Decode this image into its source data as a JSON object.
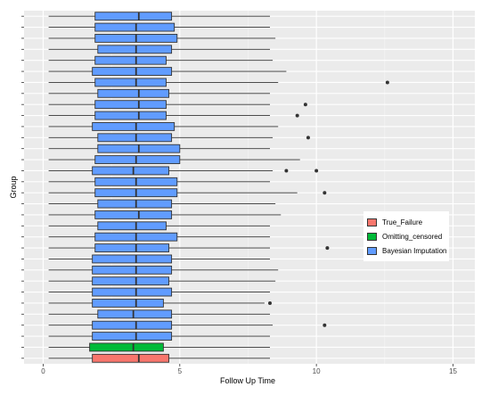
{
  "chart_data": {
    "type": "boxplot",
    "orientation": "horizontal",
    "xlabel": "Follow Up Time",
    "ylabel": "Group",
    "xlim": [
      -0.7,
      15.8
    ],
    "x_ticks": [
      0,
      5,
      10,
      15
    ],
    "grid": true,
    "legend_position": "right",
    "series": [
      {
        "name": "True_Failure",
        "color": "#F8766D"
      },
      {
        "name": "Omitting_censored",
        "color": "#00BA38"
      },
      {
        "name": "Bayesian Imputation",
        "color": "#619CFF"
      }
    ],
    "boxes": [
      {
        "group": "True_Failure",
        "min": 0.2,
        "q1": 1.8,
        "median": 3.5,
        "q3": 4.6,
        "max": 8.3,
        "outliers": []
      },
      {
        "group": "Omitting_censored",
        "min": 0.2,
        "q1": 1.7,
        "median": 3.3,
        "q3": 4.4,
        "max": 8.3,
        "outliers": []
      },
      {
        "group": "Bayesian Imputation",
        "min": 0.2,
        "q1": 1.8,
        "median": 3.4,
        "q3": 4.7,
        "max": 8.3,
        "outliers": []
      },
      {
        "group": "Bayesian Imputation",
        "min": 0.2,
        "q1": 1.8,
        "median": 3.4,
        "q3": 4.7,
        "max": 8.4,
        "outliers": [
          10.3
        ]
      },
      {
        "group": "Bayesian Imputation",
        "min": 0.2,
        "q1": 2.0,
        "median": 3.3,
        "q3": 4.7,
        "max": 8.3,
        "outliers": []
      },
      {
        "group": "Bayesian Imputation",
        "min": 0.2,
        "q1": 1.8,
        "median": 3.4,
        "q3": 4.4,
        "max": 8.1,
        "outliers": [
          8.3
        ]
      },
      {
        "group": "Bayesian Imputation",
        "min": 0.2,
        "q1": 1.8,
        "median": 3.4,
        "q3": 4.7,
        "max": 8.3,
        "outliers": []
      },
      {
        "group": "Bayesian Imputation",
        "min": 0.2,
        "q1": 1.8,
        "median": 3.4,
        "q3": 4.6,
        "max": 8.5,
        "outliers": []
      },
      {
        "group": "Bayesian Imputation",
        "min": 0.2,
        "q1": 1.8,
        "median": 3.4,
        "q3": 4.7,
        "max": 8.6,
        "outliers": []
      },
      {
        "group": "Bayesian Imputation",
        "min": 0.2,
        "q1": 1.8,
        "median": 3.4,
        "q3": 4.7,
        "max": 8.3,
        "outliers": []
      },
      {
        "group": "Bayesian Imputation",
        "min": 0.2,
        "q1": 1.9,
        "median": 3.4,
        "q3": 4.6,
        "max": 8.3,
        "outliers": [
          10.4
        ]
      },
      {
        "group": "Bayesian Imputation",
        "min": 0.2,
        "q1": 1.9,
        "median": 3.4,
        "q3": 4.9,
        "max": 8.3,
        "outliers": []
      },
      {
        "group": "Bayesian Imputation",
        "min": 0.2,
        "q1": 2.0,
        "median": 3.4,
        "q3": 4.5,
        "max": 8.3,
        "outliers": []
      },
      {
        "group": "Bayesian Imputation",
        "min": 0.2,
        "q1": 1.9,
        "median": 3.5,
        "q3": 4.7,
        "max": 8.7,
        "outliers": []
      },
      {
        "group": "Bayesian Imputation",
        "min": 0.2,
        "q1": 2.0,
        "median": 3.4,
        "q3": 4.7,
        "max": 8.5,
        "outliers": []
      },
      {
        "group": "Bayesian Imputation",
        "min": 0.2,
        "q1": 1.9,
        "median": 3.4,
        "q3": 4.9,
        "max": 9.3,
        "outliers": [
          10.3
        ]
      },
      {
        "group": "Bayesian Imputation",
        "min": 0.2,
        "q1": 1.9,
        "median": 3.4,
        "q3": 4.9,
        "max": 8.3,
        "outliers": []
      },
      {
        "group": "Bayesian Imputation",
        "min": 0.2,
        "q1": 1.8,
        "median": 3.3,
        "q3": 4.6,
        "max": 8.4,
        "outliers": [
          8.9,
          10.0
        ]
      },
      {
        "group": "Bayesian Imputation",
        "min": 0.2,
        "q1": 1.9,
        "median": 3.4,
        "q3": 5.0,
        "max": 9.4,
        "outliers": []
      },
      {
        "group": "Bayesian Imputation",
        "min": 0.2,
        "q1": 2.0,
        "median": 3.5,
        "q3": 5.0,
        "max": 8.3,
        "outliers": []
      },
      {
        "group": "Bayesian Imputation",
        "min": 0.2,
        "q1": 2.0,
        "median": 3.4,
        "q3": 4.7,
        "max": 8.4,
        "outliers": [
          9.7
        ]
      },
      {
        "group": "Bayesian Imputation",
        "min": 0.2,
        "q1": 1.8,
        "median": 3.4,
        "q3": 4.8,
        "max": 8.6,
        "outliers": []
      },
      {
        "group": "Bayesian Imputation",
        "min": 0.2,
        "q1": 1.9,
        "median": 3.5,
        "q3": 4.5,
        "max": 8.3,
        "outliers": [
          9.3
        ]
      },
      {
        "group": "Bayesian Imputation",
        "min": 0.2,
        "q1": 1.9,
        "median": 3.5,
        "q3": 4.5,
        "max": 8.3,
        "outliers": [
          9.6
        ]
      },
      {
        "group": "Bayesian Imputation",
        "min": 0.2,
        "q1": 2.0,
        "median": 3.5,
        "q3": 4.6,
        "max": 8.3,
        "outliers": []
      },
      {
        "group": "Bayesian Imputation",
        "min": 0.2,
        "q1": 1.9,
        "median": 3.4,
        "q3": 4.5,
        "max": 8.6,
        "outliers": [
          12.6
        ]
      },
      {
        "group": "Bayesian Imputation",
        "min": 0.2,
        "q1": 1.8,
        "median": 3.4,
        "q3": 4.7,
        "max": 8.9,
        "outliers": []
      },
      {
        "group": "Bayesian Imputation",
        "min": 0.2,
        "q1": 1.9,
        "median": 3.4,
        "q3": 4.5,
        "max": 8.4,
        "outliers": []
      },
      {
        "group": "Bayesian Imputation",
        "min": 0.2,
        "q1": 2.0,
        "median": 3.4,
        "q3": 4.7,
        "max": 8.3,
        "outliers": []
      },
      {
        "group": "Bayesian Imputation",
        "min": 0.2,
        "q1": 1.9,
        "median": 3.4,
        "q3": 4.9,
        "max": 8.5,
        "outliers": []
      },
      {
        "group": "Bayesian Imputation",
        "min": 0.2,
        "q1": 1.9,
        "median": 3.4,
        "q3": 4.8,
        "max": 8.3,
        "outliers": []
      },
      {
        "group": "Bayesian Imputation",
        "min": 0.2,
        "q1": 1.9,
        "median": 3.5,
        "q3": 4.7,
        "max": 8.3,
        "outliers": []
      }
    ]
  }
}
